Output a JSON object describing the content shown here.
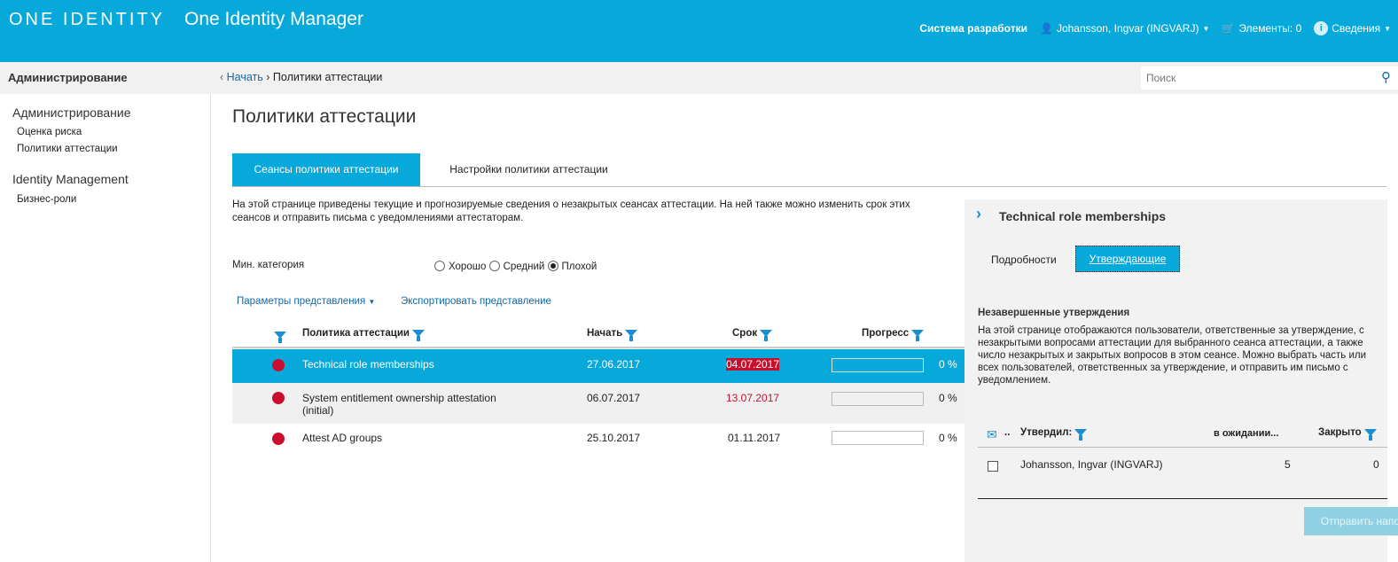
{
  "header": {
    "logo": "ONE IDENTITY",
    "app_title": "One Identity Manager",
    "system": "Система разработки",
    "user": "Johansson, Ingvar (INGVARJ)",
    "cart": "Элементы: 0",
    "info": "Сведения"
  },
  "bar": {
    "section": "Администрирование",
    "breadcrumb_home": "Начать",
    "breadcrumb_current": "Политики аттестации",
    "search_placeholder": "Поиск"
  },
  "sidebar": {
    "groups": [
      {
        "title": "Администрирование",
        "items": [
          "Оценка риска",
          "Политики аттестации"
        ]
      },
      {
        "title": "Identity Management",
        "items": [
          "Бизнес-роли"
        ]
      }
    ]
  },
  "main": {
    "title": "Политики аттестации",
    "tabs": [
      "Сеансы политики аттестации",
      "Настройки политики аттестации"
    ],
    "description": "На этой странице приведены текущие и прогнозируемые сведения о незакрытых сеансах аттестации. На ней также можно изменить срок этих сеансов и отправить письма с уведомлениями аттестаторам.",
    "min_category_label": "Мин. категория",
    "radio": [
      "Хорошо",
      "Средний",
      "Плохой"
    ],
    "radio_selected": "Плохой",
    "view_params": "Параметры представления",
    "export": "Экспортировать представление",
    "columns": [
      "Политика аттестации",
      "Начать",
      "Срок",
      "Прогресс"
    ],
    "rows": [
      {
        "name": "Technical role memberships",
        "start": "27.06.2017",
        "due": "04.07.2017",
        "progress": "0 %",
        "progress_value": 0,
        "status_color": "#c8102e",
        "due_overdue": true,
        "selected": true
      },
      {
        "name": "System entitlement ownership attestation (initial)",
        "start": "06.07.2017",
        "due": "13.07.2017",
        "progress": "0 %",
        "progress_value": 0,
        "status_color": "#c8102e",
        "due_overdue": true
      },
      {
        "name": "Attest AD groups",
        "start": "25.10.2017",
        "due": "01.11.2017",
        "progress": "0 %",
        "progress_value": 0,
        "status_color": "#c8102e",
        "due_overdue": false
      }
    ]
  },
  "panel": {
    "title": "Technical role memberships",
    "tabs": [
      "Подробности",
      "Утверждающие"
    ],
    "active_tab": "Утверждающие",
    "section_title": "Незавершенные утверждения",
    "description": "На этой странице отображаются пользователи, ответственные за утверждение, с незакрытыми вопросами аттестации для выбранного сеанса аттестации, а также число незакрытых и закрытых вопросов в этом сеансе. Можно выбрать часть или всех пользователей, ответственных за утверждение, и отправить им письмо с уведомлением.",
    "col_more": "..",
    "columns": [
      "Утвердил:",
      "в ожидании...",
      "Закрыто"
    ],
    "rows": [
      {
        "approver": "Johansson, Ingvar (INGVARJ)",
        "pending": "5",
        "closed": "0"
      }
    ],
    "send_button": "Отправить напоминание"
  },
  "colors": {
    "accent": "#07a9da",
    "overdue": "#c8102e",
    "link": "#1467a8"
  }
}
